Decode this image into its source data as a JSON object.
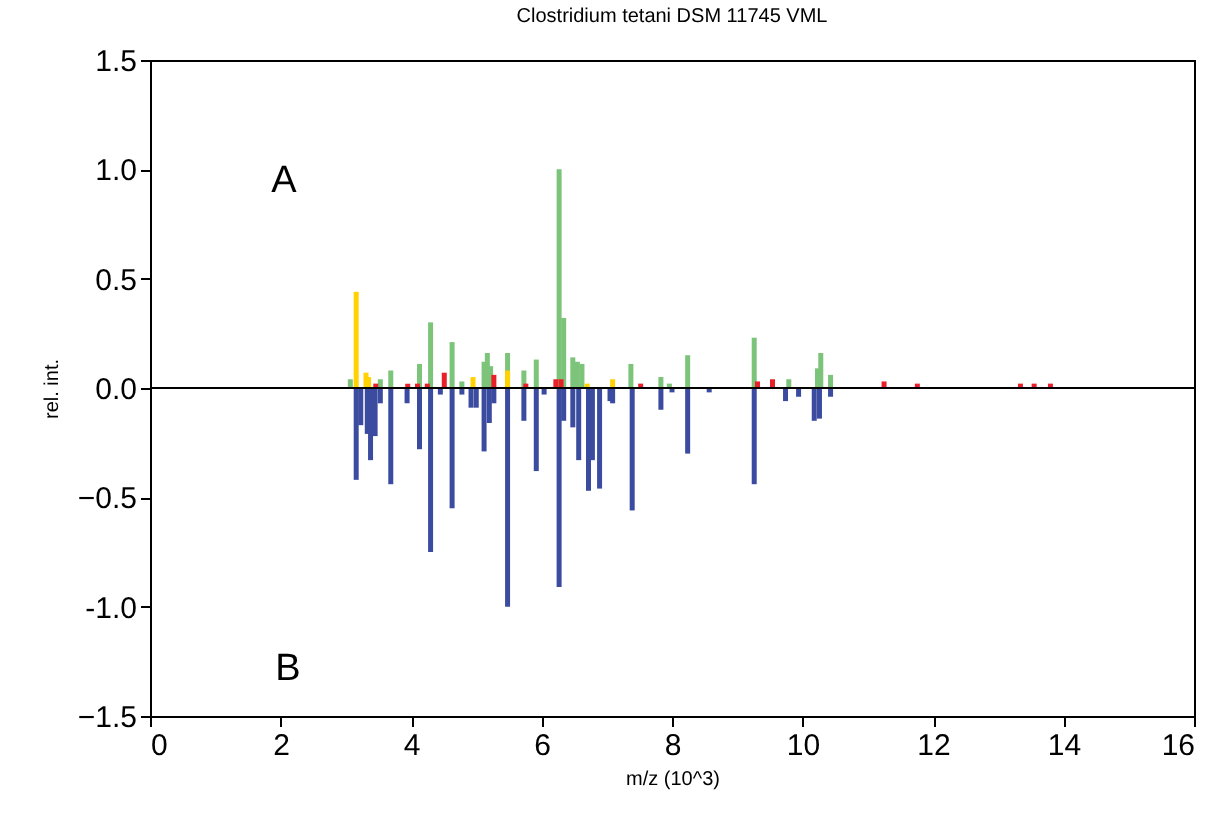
{
  "chart_data": {
    "type": "bar",
    "title": "Clostridium tetani DSM 11745 VML",
    "xlabel": "m/z (10^3)",
    "ylabel": "rel. int.",
    "annotations": [
      "A",
      "B"
    ],
    "xlim": [
      0,
      16
    ],
    "xticks": [
      0,
      2,
      4,
      6,
      8,
      10,
      12,
      14,
      16
    ],
    "ylim": [
      -1.5,
      1.5
    ],
    "yticks": [
      -1.5,
      {
        "value": -1,
        "label": "-1.0"
      },
      -0.5,
      {
        "value": 0,
        "label": "0.0"
      },
      0.5,
      {
        "value": 1,
        "label": "1.0"
      },
      1.5
    ],
    "grid": false,
    "ref_lines": [
      {
        "axis": "y",
        "value": 0,
        "color": "#000000"
      }
    ],
    "series": [
      {
        "color": "#7cc47a",
        "x": [
          3.07,
          3.53,
          3.69,
          4.13,
          4.3,
          4.63,
          4.78,
          5.12,
          5.17,
          5.22,
          5.48,
          5.73,
          5.92,
          6.27,
          6.34,
          6.48,
          6.55,
          6.62,
          7.37,
          7.83,
          7.96,
          8.24,
          9.26,
          9.79,
          10.23,
          10.28,
          10.43
        ],
        "values": [
          0.04,
          0.04,
          0.08,
          0.11,
          0.3,
          0.21,
          0.03,
          0.12,
          0.16,
          0.1,
          0.16,
          0.08,
          0.13,
          1.0,
          0.32,
          0.14,
          0.12,
          0.11,
          0.11,
          0.05,
          0.02,
          0.15,
          0.23,
          0.04,
          0.09,
          0.16,
          0.06
        ]
      },
      {
        "color": "#ffd200",
        "x": [
          3.16,
          3.31,
          3.35,
          4.95,
          5.48,
          6.7,
          7.09
        ],
        "values": [
          0.44,
          0.07,
          0.05,
          0.05,
          0.08,
          0.02,
          0.04
        ]
      },
      {
        "color": "#e8202a",
        "x": [
          3.46,
          3.95,
          4.1,
          4.25,
          4.51,
          5.27,
          5.76,
          6.22,
          6.3,
          7.52,
          9.31,
          9.54,
          11.25,
          11.76,
          13.34,
          13.55,
          13.8
        ],
        "values": [
          0.02,
          0.02,
          0.02,
          0.02,
          0.07,
          0.06,
          0.02,
          0.04,
          0.04,
          0.02,
          0.03,
          0.04,
          0.03,
          0.02,
          0.02,
          0.02,
          0.02
        ]
      },
      {
        "color": "#3b4ba0",
        "x": [
          3.16,
          3.23,
          3.33,
          3.38,
          3.45,
          3.53,
          3.69,
          3.94,
          4.13,
          4.3,
          4.45,
          4.63,
          4.78,
          4.92,
          5.0,
          5.12,
          5.2,
          5.27,
          5.48,
          5.73,
          5.92,
          6.04,
          6.27,
          6.34,
          6.48,
          6.57,
          6.72,
          6.78,
          6.89,
          7.05,
          7.09,
          7.39,
          7.83,
          8.0,
          8.24,
          8.57,
          9.26,
          9.74,
          9.94,
          10.18,
          10.26,
          10.43
        ],
        "values": [
          -0.42,
          -0.17,
          -0.21,
          -0.33,
          -0.22,
          -0.07,
          -0.44,
          -0.07,
          -0.28,
          -0.75,
          -0.03,
          -0.55,
          -0.03,
          -0.09,
          -0.09,
          -0.29,
          -0.16,
          -0.07,
          -1.0,
          -0.15,
          -0.38,
          -0.03,
          -0.91,
          -0.15,
          -0.18,
          -0.33,
          -0.47,
          -0.33,
          -0.46,
          -0.06,
          -0.07,
          -0.56,
          -0.1,
          -0.02,
          -0.3,
          -0.02,
          -0.44,
          -0.06,
          -0.04,
          -0.15,
          -0.14,
          -0.04
        ]
      }
    ]
  }
}
